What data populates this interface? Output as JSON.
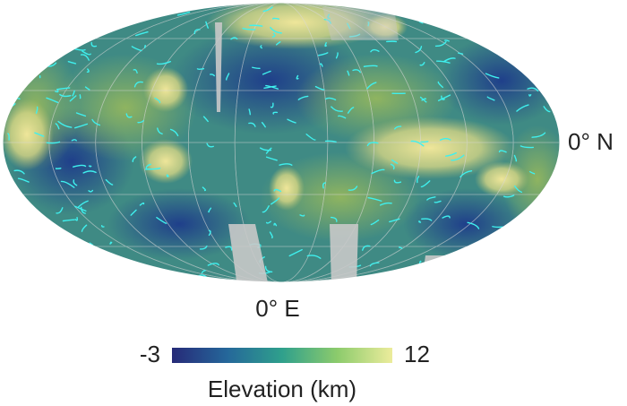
{
  "map": {
    "latitude_label": "0° N",
    "longitude_label": "0° E"
  },
  "colorbar": {
    "min": -3,
    "max": 12,
    "label": "Elevation (km)"
  }
}
